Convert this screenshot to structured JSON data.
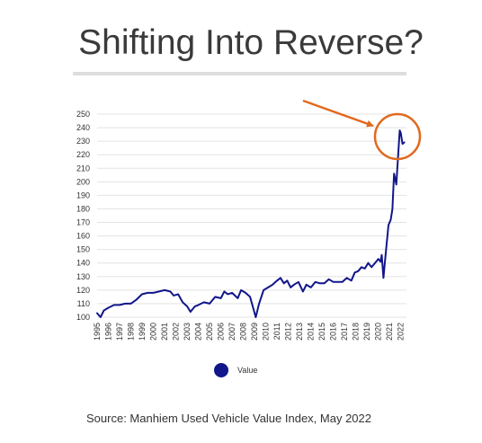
{
  "title": "Shifting Into Reverse?",
  "source": "Source: Manhiem Used Vehicle Value Index, May 2022",
  "legend": {
    "label": "Value",
    "color": "#11168a"
  },
  "colors": {
    "series": "#11168a",
    "annotation": "#e06a1e",
    "grid": "#e3e3e3",
    "rule": "#dddddd"
  },
  "chart_data": {
    "type": "line",
    "title": "",
    "xlabel": "",
    "ylabel": "",
    "ylim": [
      100,
      250
    ],
    "y_ticks": [
      100,
      110,
      120,
      130,
      140,
      150,
      160,
      170,
      180,
      190,
      200,
      210,
      220,
      230,
      240,
      250
    ],
    "xlim": [
      1995,
      2022.5
    ],
    "x_ticks": [
      "1995",
      "1996",
      "1997",
      "1998",
      "1999",
      "2000",
      "2001",
      "2002",
      "2003",
      "2004",
      "2005",
      "2006",
      "2007",
      "2008",
      "2009",
      "2010",
      "2011",
      "2012",
      "2013",
      "2014",
      "2015",
      "2016",
      "2017",
      "2018",
      "2019",
      "2020",
      "2021",
      "2022"
    ],
    "grid": true,
    "legend_position": "bottom",
    "series": [
      {
        "name": "Value",
        "x": [
          1995.0,
          1995.3,
          1995.6,
          1996.0,
          1996.5,
          1997.0,
          1997.5,
          1998.0,
          1998.5,
          1999.0,
          1999.5,
          2000.0,
          2000.5,
          2001.0,
          2001.5,
          2001.8,
          2002.2,
          2002.6,
          2003.0,
          2003.3,
          2003.7,
          2004.0,
          2004.5,
          2005.0,
          2005.5,
          2006.0,
          2006.3,
          2006.6,
          2007.0,
          2007.5,
          2007.8,
          2008.2,
          2008.6,
          2008.9,
          2009.1,
          2009.4,
          2009.8,
          2010.2,
          2010.6,
          2011.0,
          2011.3,
          2011.6,
          2011.9,
          2012.2,
          2012.5,
          2012.9,
          2013.3,
          2013.6,
          2014.0,
          2014.4,
          2014.8,
          2015.2,
          2015.6,
          2016.0,
          2016.4,
          2016.8,
          2017.2,
          2017.6,
          2017.9,
          2018.2,
          2018.5,
          2018.8,
          2019.1,
          2019.4,
          2019.7,
          2020.0,
          2020.2,
          2020.3,
          2020.45,
          2020.6,
          2020.9,
          2021.1,
          2021.25,
          2021.4,
          2021.5,
          2021.6,
          2021.75,
          2021.9,
          2022.0,
          2022.15,
          2022.3
        ],
        "values": [
          103,
          100,
          105,
          107,
          109,
          109,
          110,
          110,
          113,
          117,
          118,
          118,
          119,
          120,
          119,
          116,
          117,
          111,
          108,
          104,
          108,
          109,
          111,
          110,
          115,
          114,
          119,
          117,
          118,
          114,
          120,
          118,
          115,
          106,
          100,
          110,
          120,
          122,
          124,
          127,
          129,
          125,
          127,
          122,
          124,
          126,
          119,
          124,
          122,
          126,
          125,
          125,
          128,
          126,
          126,
          126,
          129,
          127,
          133,
          134,
          137,
          136,
          140,
          137,
          140,
          143,
          141,
          146,
          129,
          142,
          168,
          172,
          180,
          206,
          202,
          198,
          218,
          238,
          236,
          228,
          229
        ]
      }
    ]
  }
}
